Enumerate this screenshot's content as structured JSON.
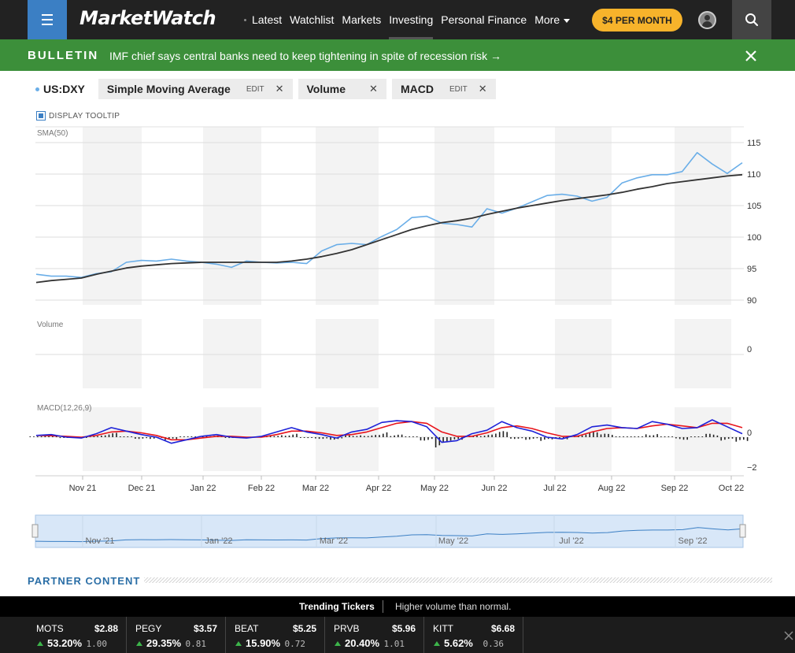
{
  "header": {
    "logo": "MarketWatch",
    "nav": [
      {
        "label": "Latest",
        "active": false
      },
      {
        "label": "Watchlist",
        "active": false
      },
      {
        "label": "Markets",
        "active": false
      },
      {
        "label": "Investing",
        "active": true
      },
      {
        "label": "Personal Finance",
        "active": false
      },
      {
        "label": "More",
        "active": false
      }
    ],
    "subscribe_label": "$4 PER MONTH",
    "icons": {
      "menu": "hamburger-icon",
      "user": "user-icon",
      "search": "search-icon"
    }
  },
  "bulletin": {
    "label": "BULLETIN",
    "text": "IMF chief says central banks need to keep tightening in spite of recession risk →"
  },
  "studies": {
    "symbol": "US:DXY",
    "chips": [
      {
        "label": "Simple Moving Average",
        "edit": "EDIT"
      },
      {
        "label": "Volume",
        "edit": ""
      },
      {
        "label": "MACD",
        "edit": "EDIT"
      }
    ],
    "tooltip_label": "DISPLAY TOOLTIP"
  },
  "colors": {
    "price_line": "#6aaee8",
    "sma_line": "#333333",
    "macd_line": "#1e22d8",
    "signal_line": "#e8141b",
    "accent": "#3b7fc4",
    "bulletin_bg": "#3c8f3a",
    "subscribe_bg": "#f7b32b"
  },
  "chart_data": [
    {
      "type": "line",
      "title": "SMA(50)",
      "ylim": [
        90,
        116
      ],
      "yticks": [
        "115",
        "110",
        "105",
        "100",
        "95",
        "90"
      ],
      "ytick_values": [
        115,
        110,
        105,
        100,
        95,
        90
      ],
      "xticks": [
        "Nov 21",
        "Dec 21",
        "Jan 22",
        "Feb 22",
        "Mar 22",
        "Apr 22",
        "May 22",
        "Jun 22",
        "Jul 22",
        "Aug 22",
        "Sep 22",
        "Oct 22"
      ],
      "grid": true,
      "series": [
        {
          "name": "US:DXY",
          "values": [
            94.1,
            93.8,
            93.8,
            93.6,
            94.2,
            94.5,
            96.0,
            96.3,
            96.2,
            96.5,
            96.2,
            96.0,
            95.7,
            95.2,
            96.2,
            96.0,
            95.9,
            96.0,
            95.8,
            97.8,
            98.8,
            99.0,
            98.8,
            100.1,
            101.2,
            103.1,
            103.3,
            102.2,
            102.0,
            101.6,
            104.5,
            103.8,
            104.6,
            105.6,
            106.6,
            106.8,
            106.5,
            105.7,
            106.3,
            108.6,
            109.4,
            109.9,
            109.9,
            110.4,
            113.4,
            111.6,
            110.1,
            111.8
          ]
        },
        {
          "name": "SMA(50)",
          "values": [
            92.8,
            93.1,
            93.3,
            93.5,
            94.1,
            94.6,
            95.1,
            95.4,
            95.6,
            95.8,
            95.9,
            96.0,
            96.0,
            96.0,
            96.0,
            96.0,
            96.0,
            96.2,
            96.5,
            96.9,
            97.4,
            98.0,
            98.8,
            99.6,
            100.4,
            101.2,
            101.8,
            102.3,
            102.6,
            103.0,
            103.6,
            104.1,
            104.6,
            105.0,
            105.4,
            105.8,
            106.1,
            106.4,
            106.7,
            107.1,
            107.6,
            108.0,
            108.5,
            108.8,
            109.1,
            109.4,
            109.7,
            109.9
          ]
        }
      ]
    },
    {
      "type": "bar",
      "title": "Volume",
      "yticks": [
        "0"
      ],
      "ytick_values": [
        0
      ],
      "values": []
    },
    {
      "type": "line",
      "title": "MACD(12,26,9)",
      "ylim": [
        -2.3,
        1.4
      ],
      "yticks": [
        "0",
        "−2"
      ],
      "ytick_values": [
        0,
        -2
      ],
      "series": [
        {
          "name": "MACD",
          "values": [
            0.1,
            0.15,
            0.0,
            -0.05,
            0.2,
            0.55,
            0.35,
            0.15,
            0.0,
            -0.35,
            -0.15,
            0.05,
            0.15,
            0.0,
            -0.05,
            0.05,
            0.3,
            0.55,
            0.3,
            0.15,
            -0.05,
            0.3,
            0.45,
            0.85,
            0.95,
            0.9,
            0.6,
            -0.3,
            -0.2,
            0.2,
            0.4,
            0.9,
            0.55,
            0.35,
            0.0,
            -0.1,
            0.15,
            0.6,
            0.7,
            0.55,
            0.5,
            0.9,
            0.75,
            0.5,
            0.55,
            1.0,
            0.6,
            0.2
          ]
        },
        {
          "name": "Signal",
          "values": [
            0.1,
            0.08,
            0.05,
            0.0,
            0.1,
            0.3,
            0.35,
            0.25,
            0.1,
            -0.15,
            -0.15,
            -0.05,
            0.05,
            0.05,
            0.0,
            0.0,
            0.15,
            0.35,
            0.35,
            0.25,
            0.1,
            0.15,
            0.3,
            0.55,
            0.8,
            0.9,
            0.8,
            0.3,
            0.05,
            0.05,
            0.25,
            0.55,
            0.65,
            0.5,
            0.25,
            0.05,
            0.05,
            0.3,
            0.5,
            0.55,
            0.5,
            0.65,
            0.75,
            0.65,
            0.55,
            0.8,
            0.8,
            0.55
          ]
        }
      ],
      "histogram": [
        0,
        0.07,
        -0.05,
        -0.05,
        0.1,
        0.25,
        0.0,
        -0.1,
        -0.1,
        -0.2,
        0.0,
        0.1,
        0.1,
        -0.05,
        -0.05,
        0.05,
        0.15,
        0.2,
        -0.05,
        -0.1,
        -0.15,
        0.15,
        0.15,
        0.3,
        0.15,
        0.0,
        -0.2,
        -0.6,
        -0.25,
        0.15,
        0.15,
        0.35,
        -0.1,
        -0.15,
        -0.25,
        -0.15,
        0.1,
        0.3,
        0.2,
        0.0,
        0.0,
        0.25,
        0.0,
        -0.15,
        0.0,
        0.2,
        -0.2,
        -0.35
      ]
    },
    {
      "type": "area",
      "title": "",
      "xticks": [
        "Nov '21",
        "Jan '22",
        "Mar '22",
        "May '22",
        "Jul '22",
        "Sep '22"
      ]
    }
  ],
  "partner": {
    "label": "PARTNER CONTENT"
  },
  "trending": {
    "title": "Trending Tickers",
    "subtitle": "Higher volume than normal.",
    "tickers": [
      {
        "symbol": "MOTS",
        "price": "$2.88",
        "change": "53.20%",
        "volume": "1.00"
      },
      {
        "symbol": "PEGY",
        "price": "$3.57",
        "change": "29.35%",
        "volume": "0.81"
      },
      {
        "symbol": "BEAT",
        "price": "$5.25",
        "change": "15.90%",
        "volume": "0.72"
      },
      {
        "symbol": "PRVB",
        "price": "$5.96",
        "change": "20.40%",
        "volume": "1.01"
      },
      {
        "symbol": "KITT",
        "price": "$6.68",
        "change": "5.62%",
        "volume": "0.36"
      }
    ]
  }
}
